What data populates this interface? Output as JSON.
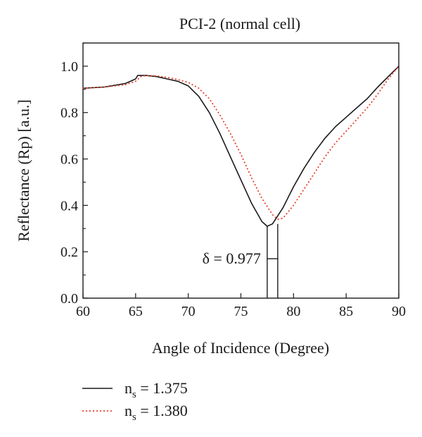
{
  "chart_data": {
    "type": "line",
    "title": "PCI-2 (normal cell)",
    "xlabel": "Angle of Incidence (Degree)",
    "ylabel": "Reflectance (Rp) [a.u.]",
    "xlim": [
      60,
      90
    ],
    "ylim": [
      0,
      1.1
    ],
    "xticks": [
      "60",
      "65",
      "70",
      "75",
      "80",
      "85",
      "90"
    ],
    "yticks": [
      "0.0",
      "0.2",
      "0.4",
      "0.6",
      "0.8",
      "1.0"
    ],
    "grid": false,
    "legend_position": "bottom-left",
    "series": [
      {
        "name": "n",
        "name_sub": "s",
        "name_suffix": " = 1.375",
        "color": "#1a1a1a",
        "style": "solid",
        "x": [
          60,
          62,
          64,
          65,
          65.2,
          66,
          67,
          68,
          69,
          70,
          71,
          72,
          73,
          74,
          75,
          76,
          77,
          77.5,
          78,
          79,
          80,
          81,
          82,
          83,
          84,
          85,
          86,
          87,
          88,
          89,
          90
        ],
        "y": [
          0.905,
          0.91,
          0.925,
          0.945,
          0.96,
          0.96,
          0.955,
          0.945,
          0.935,
          0.915,
          0.87,
          0.8,
          0.71,
          0.61,
          0.51,
          0.41,
          0.33,
          0.31,
          0.32,
          0.39,
          0.48,
          0.56,
          0.63,
          0.69,
          0.74,
          0.78,
          0.82,
          0.86,
          0.91,
          0.955,
          1.0
        ]
      },
      {
        "name": "n",
        "name_sub": "s",
        "name_suffix": " = 1.380",
        "color": "#e8402c",
        "style": "dotted",
        "x": [
          60,
          62,
          64,
          65,
          65.5,
          66,
          67,
          68,
          69,
          70,
          71,
          72,
          73,
          74,
          75,
          76,
          77,
          78,
          78.5,
          79,
          80,
          81,
          82,
          83,
          84,
          85,
          86,
          87,
          88,
          89,
          90
        ],
        "y": [
          0.905,
          0.91,
          0.92,
          0.935,
          0.955,
          0.96,
          0.958,
          0.952,
          0.942,
          0.93,
          0.905,
          0.86,
          0.79,
          0.71,
          0.62,
          0.52,
          0.43,
          0.36,
          0.34,
          0.345,
          0.4,
          0.47,
          0.54,
          0.61,
          0.67,
          0.72,
          0.77,
          0.82,
          0.88,
          0.945,
          1.0
        ]
      }
    ],
    "annotations": [
      {
        "text": "δ = 0.977",
        "x1": 77.5,
        "x2": 78.5,
        "y": 0.17
      }
    ]
  }
}
